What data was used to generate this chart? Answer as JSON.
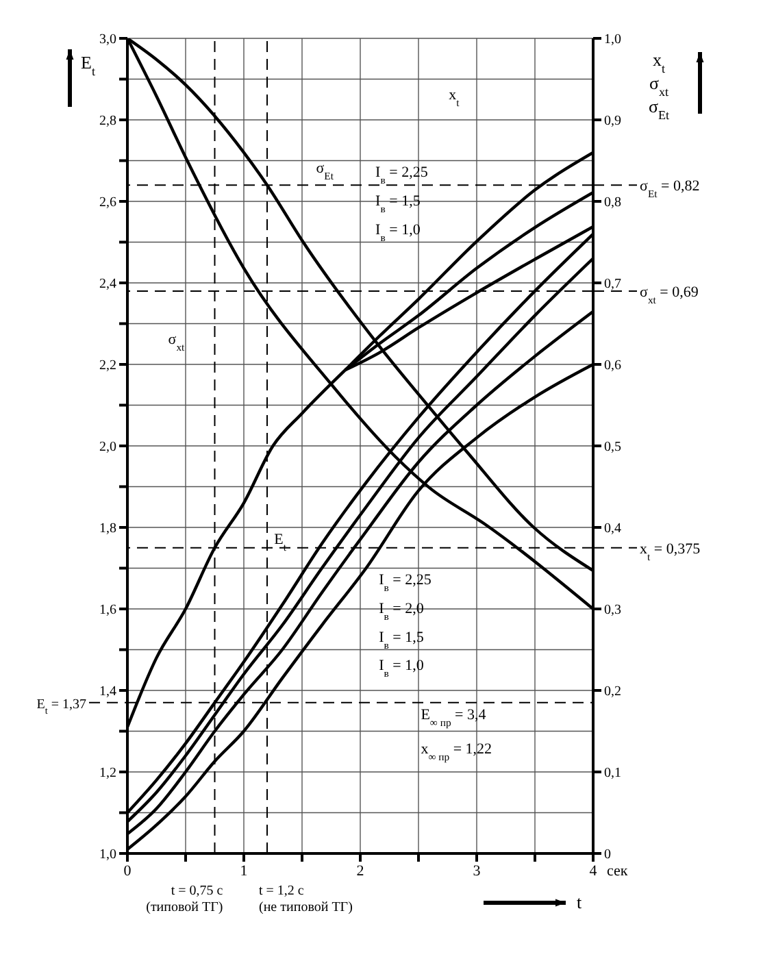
{
  "chart_data": {
    "type": "line",
    "xlabel": "t",
    "ylabel": "E$_{t}$",
    "y2label": "x$_{t}$ σ$_{xt}$ σ$_{Et}$",
    "x": [
      0,
      0.25,
      0.5,
      0.75,
      1,
      1.33,
      1.67,
      2.05,
      2.5,
      3,
      3.5,
      4
    ],
    "series": [
      {
        "color": "#000000",
        "values": [
          1.1,
          1.18,
          1.27,
          1.37,
          1.47,
          1.61,
          1.76,
          1.91,
          2.07,
          2.23,
          2.38,
          2.52
        ]
      },
      {
        "color": "#000000",
        "values": [
          1.078,
          1.15,
          1.24,
          1.34,
          1.44,
          1.56,
          1.7,
          1.85,
          2.02,
          2.17,
          2.32,
          2.46
        ]
      },
      {
        "color": "#000000",
        "values": [
          1.048,
          1.11,
          1.2,
          1.3,
          1.39,
          1.5,
          1.64,
          1.79,
          1.96,
          2.1,
          2.22,
          2.33
        ]
      },
      {
        "color": "#000000",
        "values": [
          1.01,
          1.07,
          1.14,
          1.226,
          1.3,
          1.43,
          1.56,
          1.7,
          1.89,
          2.02,
          2.12,
          2.2
        ]
      },
      {
        "color": "#000000",
        "axis": "y2",
        "x": [
          0,
          0.25,
          0.5,
          0.75,
          1,
          1.25,
          1.5,
          1.87
        ],
        "values": [
          0.155,
          0.24,
          0.3,
          0.375,
          0.43,
          0.5,
          0.54,
          0.593
        ]
      },
      {
        "color": "#000000",
        "axis": "y2",
        "x": [
          1.87,
          2.16,
          2.5,
          3,
          3.5,
          4
        ],
        "values": [
          0.593,
          0.634,
          0.68,
          0.751,
          0.814,
          0.86
        ]
      },
      {
        "color": "#000000",
        "axis": "y2",
        "x": [
          1.87,
          2.16,
          2.5,
          3,
          3.5,
          4
        ],
        "values": [
          0.593,
          0.625,
          0.66,
          0.718,
          0.768,
          0.811
        ]
      },
      {
        "color": "#000000",
        "axis": "y2",
        "x": [
          1.87,
          2.16,
          2.5,
          3,
          3.5,
          4
        ],
        "values": [
          0.593,
          0.614,
          0.645,
          0.688,
          0.729,
          0.769
        ]
      },
      {
        "color": "#000000",
        "axis": "y2",
        "x": [
          0,
          0.25,
          0.5,
          1,
          1.2,
          1.51,
          2.16,
          2.59,
          2.92,
          3.49,
          4
        ],
        "values": [
          1,
          0.974,
          0.943,
          0.86,
          0.82,
          0.75,
          0.623,
          0.548,
          0.492,
          0.4,
          0.347
        ]
      },
      {
        "color": "#000000",
        "axis": "y2",
        "x": [
          0,
          0.25,
          0.5,
          1,
          1.76,
          2.3,
          2.6,
          3.06,
          4
        ],
        "values": [
          1,
          0.929,
          0.854,
          0.718,
          0.574,
          0.487,
          0.448,
          0.405,
          0.3
        ]
      }
    ],
    "xlim": [
      0,
      4
    ],
    "xticks": [
      0,
      {
        "value": 0.5,
        "label": null
      },
      1,
      {
        "value": 1.5,
        "label": null
      },
      2,
      {
        "value": 2.5,
        "label": null
      },
      3,
      {
        "value": 3.5,
        "label": null
      },
      4
    ],
    "ylim": [
      1,
      3
    ],
    "yticks": [
      {
        "value": 1,
        "label": "1,0"
      },
      {
        "value": 1.1,
        "label": null
      },
      {
        "value": 1.2,
        "label": "1,2"
      },
      {
        "value": 1.3,
        "label": null
      },
      {
        "value": 1.4,
        "label": "1,4"
      },
      {
        "value": 1.5,
        "label": null
      },
      {
        "value": 1.6,
        "label": "1,6"
      },
      {
        "value": 1.7,
        "label": null
      },
      {
        "value": 1.8,
        "label": "1,8"
      },
      {
        "value": 1.9,
        "label": null
      },
      {
        "value": 2,
        "label": "2,0"
      },
      {
        "value": 2.1,
        "label": null
      },
      {
        "value": 2.2,
        "label": "2,2"
      },
      {
        "value": 2.3,
        "label": null
      },
      {
        "value": 2.4,
        "label": "2,4"
      },
      {
        "value": 2.5,
        "label": null
      },
      {
        "value": 2.6,
        "label": "2,6"
      },
      {
        "value": 2.7,
        "label": null
      },
      {
        "value": 2.8,
        "label": "2,8"
      },
      {
        "value": 2.9,
        "label": null
      },
      {
        "value": 3,
        "label": "3,0"
      }
    ],
    "y2lim": [
      0,
      1
    ],
    "y2ticks": [
      0,
      {
        "value": 0.1,
        "label": "0,1"
      },
      {
        "value": 0.2,
        "label": "0,2"
      },
      {
        "value": 0.3,
        "label": "0,3"
      },
      {
        "value": 0.4,
        "label": "0,4"
      },
      {
        "value": 0.5,
        "label": "0,5"
      },
      {
        "value": 0.6,
        "label": "0,6"
      },
      {
        "value": 0.7,
        "label": "0,7"
      },
      {
        "value": 0.8,
        "label": "0,8"
      },
      {
        "value": 0.9,
        "label": "0,9"
      },
      {
        "value": 1,
        "label": "1,0"
      }
    ],
    "ref_lines": [
      {
        "axis": "y2",
        "value": 0.82,
        "label": "σ$_{Et}$ = 0,82",
        "color": "#000000",
        "line_style": "dashed"
      },
      {
        "axis": "y2",
        "value": 0.69,
        "label": "σ$_{xt}$ = 0,69",
        "color": "#000000",
        "line_style": "dashed"
      },
      {
        "axis": "y2",
        "value": 0.375,
        "label": "x$_{t}$ = 0,375",
        "color": "#000000",
        "line_style": "dashed"
      },
      {
        "axis": "y",
        "value": 1.37,
        "label": "E$_{t}$ = 1,37",
        "color": "#000000",
        "line_style": "dashed"
      },
      {
        "axis": "x",
        "value": 0.75,
        "label": "t = 0,75 с\n(типовой ТГ)",
        "color": "#000000",
        "line_style": "dashed"
      },
      {
        "axis": "x",
        "value": 1.2,
        "label": "t = 1,2 с\n(не типовой ТГ)",
        "color": "#000000",
        "line_style": "dashed"
      }
    ],
    "annotations": [
      "σ$_{Et}$",
      "σ$_{xt}$",
      "x$_{t}$",
      "I$_{в}$ = 2,25",
      "I$_{в}$ = 1,5",
      "I$_{в}$ = 1,0",
      "E$_{t}$",
      "I$_{в}$ = 2,25",
      "I$_{в}$ = 2,0",
      "I$_{в}$ = 1,5",
      "I$_{в}$ = 1,0",
      "E$_{∞ пр}$ = 3,4",
      "x$_{∞ пр}$ = 1,22",
      "сек"
    ],
    "grid": true,
    "marker": "none",
    "line_style": "solid"
  }
}
